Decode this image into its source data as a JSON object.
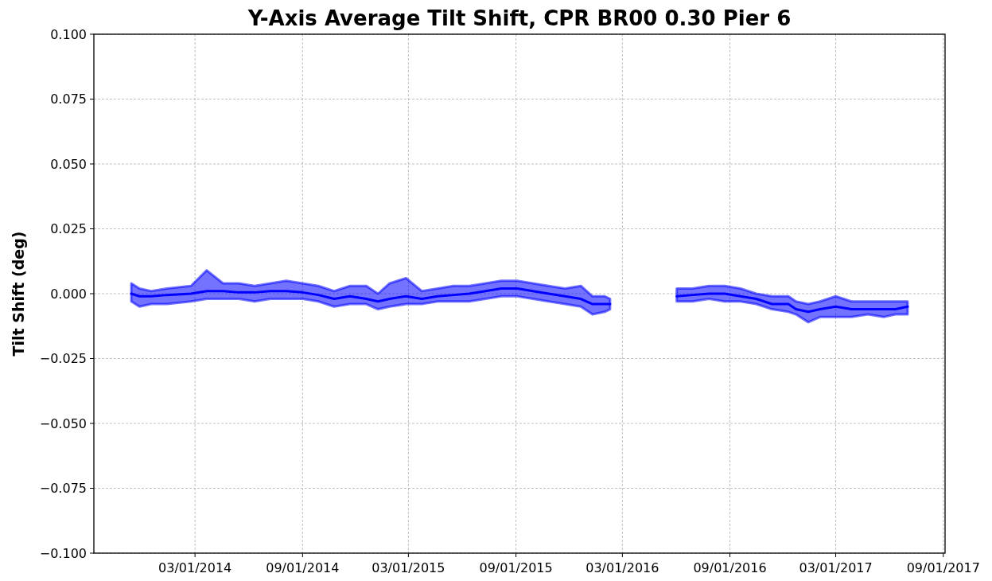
{
  "chart_data": {
    "type": "line",
    "title": "Y-Axis Average Tilt Shift, CPR BR00 0.30 Pier 6",
    "ylabel": "Tilt Shift (deg)",
    "x": [
      "2013-11-12",
      "2013-11-26",
      "2013-12-16",
      "2014-01-12",
      "2014-02-22",
      "2014-03-21",
      "2014-04-18",
      "2014-05-15",
      "2014-06-11",
      "2014-07-08",
      "2014-08-04",
      "2014-09-01",
      "2014-09-28",
      "2014-10-25",
      "2014-11-21",
      "2014-12-19",
      "2015-01-08",
      "2015-01-28",
      "2015-02-25",
      "2015-03-24",
      "2015-04-20",
      "2015-05-17",
      "2015-06-13",
      "2015-07-11",
      "2015-08-07",
      "2015-09-03",
      "2015-09-30",
      "2015-10-27",
      "2015-11-24",
      "2015-12-21",
      "2016-01-10",
      "2016-01-31",
      "2016-02-09",
      "2016-03-15",
      "2016-06-02",
      "2016-06-29",
      "2016-07-27",
      "2016-08-23",
      "2016-09-19",
      "2016-10-16",
      "2016-11-12",
      "2016-12-10",
      "2016-12-23",
      "2017-01-13",
      "2017-02-02",
      "2017-03-01",
      "2017-03-28",
      "2017-04-25",
      "2017-05-22",
      "2017-06-11",
      "2017-07-02"
    ],
    "series": [
      {
        "color": "#0000ff",
        "values": [
          0,
          -0.001,
          -0.001,
          -0.0005,
          0,
          0.001,
          0.001,
          0.0005,
          0.0005,
          0.001,
          0.001,
          0.0005,
          -0.0005,
          -0.002,
          -0.001,
          -0.002,
          -0.003,
          -0.002,
          -0.001,
          -0.002,
          -0.001,
          -0.0005,
          0,
          0.001,
          0.002,
          0.002,
          0.001,
          0,
          -0.001,
          -0.002,
          -0.004,
          -0.004,
          -0.004,
          null,
          -0.001,
          -0.0005,
          0,
          0,
          -0.001,
          -0.002,
          -0.004,
          -0.004,
          -0.006,
          -0.007,
          -0.006,
          -0.005,
          -0.006,
          -0.006,
          -0.006,
          -0.006,
          -0.005
        ],
        "lower": [
          -0.003,
          -0.005,
          -0.004,
          -0.004,
          -0.003,
          -0.002,
          -0.002,
          -0.002,
          -0.003,
          -0.002,
          -0.002,
          -0.002,
          -0.003,
          -0.005,
          -0.004,
          -0.004,
          -0.006,
          -0.005,
          -0.004,
          -0.004,
          -0.003,
          -0.003,
          -0.003,
          -0.002,
          -0.001,
          -0.001,
          -0.002,
          -0.003,
          -0.004,
          -0.005,
          -0.008,
          -0.007,
          -0.006,
          null,
          -0.003,
          -0.003,
          -0.002,
          -0.003,
          -0.003,
          -0.004,
          -0.006,
          -0.007,
          -0.008,
          -0.011,
          -0.009,
          -0.009,
          -0.009,
          -0.008,
          -0.009,
          -0.008,
          -0.008
        ],
        "upper": [
          0.004,
          0.002,
          0.001,
          0.002,
          0.003,
          0.009,
          0.004,
          0.004,
          0.003,
          0.004,
          0.005,
          0.004,
          0.003,
          0.001,
          0.003,
          0.003,
          0,
          0.004,
          0.006,
          0.001,
          0.002,
          0.003,
          0.003,
          0.004,
          0.005,
          0.005,
          0.004,
          0.003,
          0.002,
          0.003,
          -0.001,
          -0.001,
          -0.002,
          null,
          0.002,
          0.002,
          0.003,
          0.003,
          0.002,
          0,
          -0.001,
          -0.001,
          -0.003,
          -0.004,
          -0.003,
          -0.001,
          -0.003,
          -0.003,
          -0.003,
          -0.003,
          -0.003
        ]
      }
    ],
    "xlim": [
      "2013-09-09",
      "2017-09-04"
    ],
    "xticks": [
      {
        "value": "2014-03-01",
        "label": "03/01/2014"
      },
      {
        "value": "2014-09-01",
        "label": "09/01/2014"
      },
      {
        "value": "2015-03-01",
        "label": "03/01/2015"
      },
      {
        "value": "2015-09-01",
        "label": "09/01/2015"
      },
      {
        "value": "2016-03-01",
        "label": "03/01/2016"
      },
      {
        "value": "2016-09-01",
        "label": "09/01/2016"
      },
      {
        "value": "2017-03-01",
        "label": "03/01/2017"
      },
      {
        "value": "2017-09-01",
        "label": "09/01/2017"
      }
    ],
    "ylim": [
      -0.1,
      0.1
    ],
    "yticks": [
      {
        "value": -0.1,
        "label": "−0.100"
      },
      {
        "value": -0.075,
        "label": "−0.075"
      },
      {
        "value": -0.05,
        "label": "−0.050"
      },
      {
        "value": -0.025,
        "label": "−0.025"
      },
      {
        "value": 0,
        "label": "0.000"
      },
      {
        "value": 0.025,
        "label": "0.025"
      },
      {
        "value": 0.05,
        "label": "0.050"
      },
      {
        "value": 0.075,
        "label": "0.075"
      },
      {
        "value": 0.1,
        "label": "0.100"
      }
    ],
    "grid": true,
    "line_style": "solid"
  }
}
